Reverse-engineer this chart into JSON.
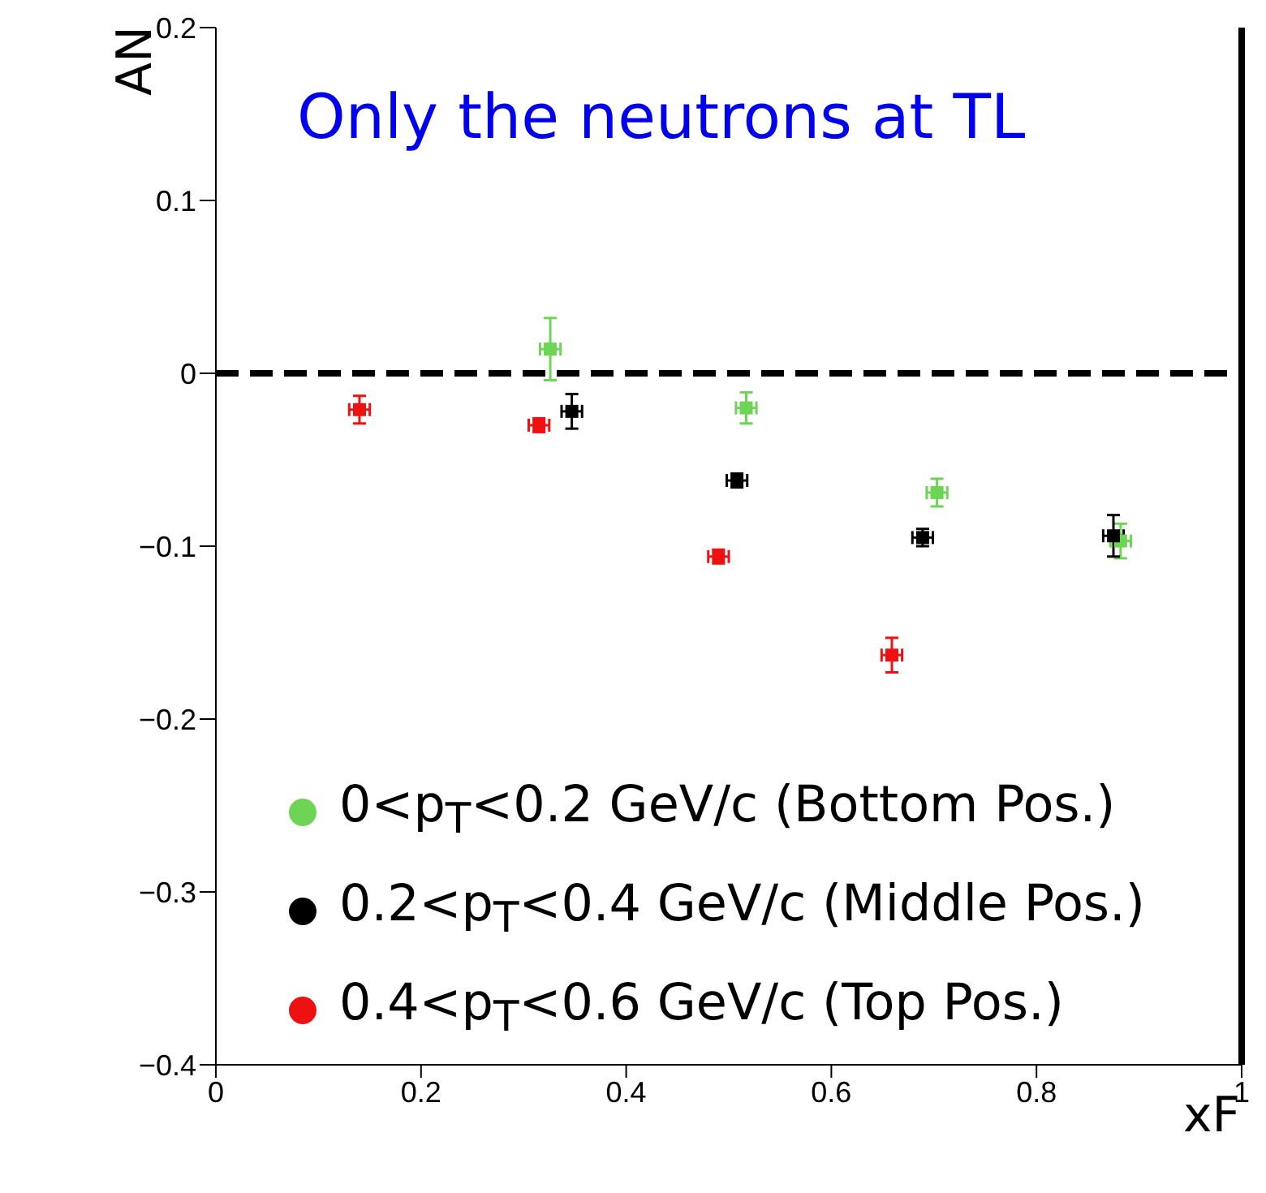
{
  "chart_data": {
    "type": "scatter",
    "title": "Only the neutrons at TL",
    "xlabel": "xF",
    "ylabel": "AN",
    "xlim": [
      0,
      1
    ],
    "ylim": [
      -0.4,
      0.2
    ],
    "xticks": [
      0,
      0.2,
      0.4,
      0.6,
      0.8,
      1
    ],
    "yticks": [
      -0.4,
      -0.3,
      -0.2,
      -0.1,
      0,
      0.1,
      0.2
    ],
    "series": [
      {
        "name": "0<p$_{T}$<0.2 GeV/c (Bottom Pos.)",
        "color": "#6ed456",
        "x": [
          0.326,
          0.517,
          0.703,
          0.882
        ],
        "values": [
          0.014,
          -0.02,
          -0.069,
          -0.097
        ],
        "errors": [
          0.018,
          0.009,
          0.008,
          0.01
        ],
        "xerrors": [
          0.01,
          0.01,
          0.01,
          0.01
        ]
      },
      {
        "name": "0.2<p$_{T}$<0.4 GeV/c (Middle Pos.)",
        "color": "#000000",
        "x": [
          0.347,
          0.508,
          0.689,
          0.875
        ],
        "values": [
          -0.022,
          -0.062,
          -0.095,
          -0.094
        ],
        "errors": [
          0.01,
          0.004,
          0.005,
          0.012
        ],
        "xerrors": [
          0.01,
          0.01,
          0.01,
          0.01
        ]
      },
      {
        "name": "0.4<p$_{T}$<0.6 GeV/c  (Top Pos.)",
        "color": "#ee1111",
        "x": [
          0.14,
          0.315,
          0.49,
          0.659
        ],
        "values": [
          -0.021,
          -0.03,
          -0.106,
          -0.163
        ],
        "errors": [
          0.008,
          0.004,
          0.004,
          0.01
        ],
        "xerrors": [
          0.01,
          0.01,
          0.01,
          0.01
        ]
      }
    ],
    "ref_lines": [
      {
        "axis": "y",
        "value": 0,
        "line_style": "dashed",
        "color": "#000000"
      }
    ],
    "marker": "square",
    "grid": false,
    "legend": "bottom left"
  }
}
